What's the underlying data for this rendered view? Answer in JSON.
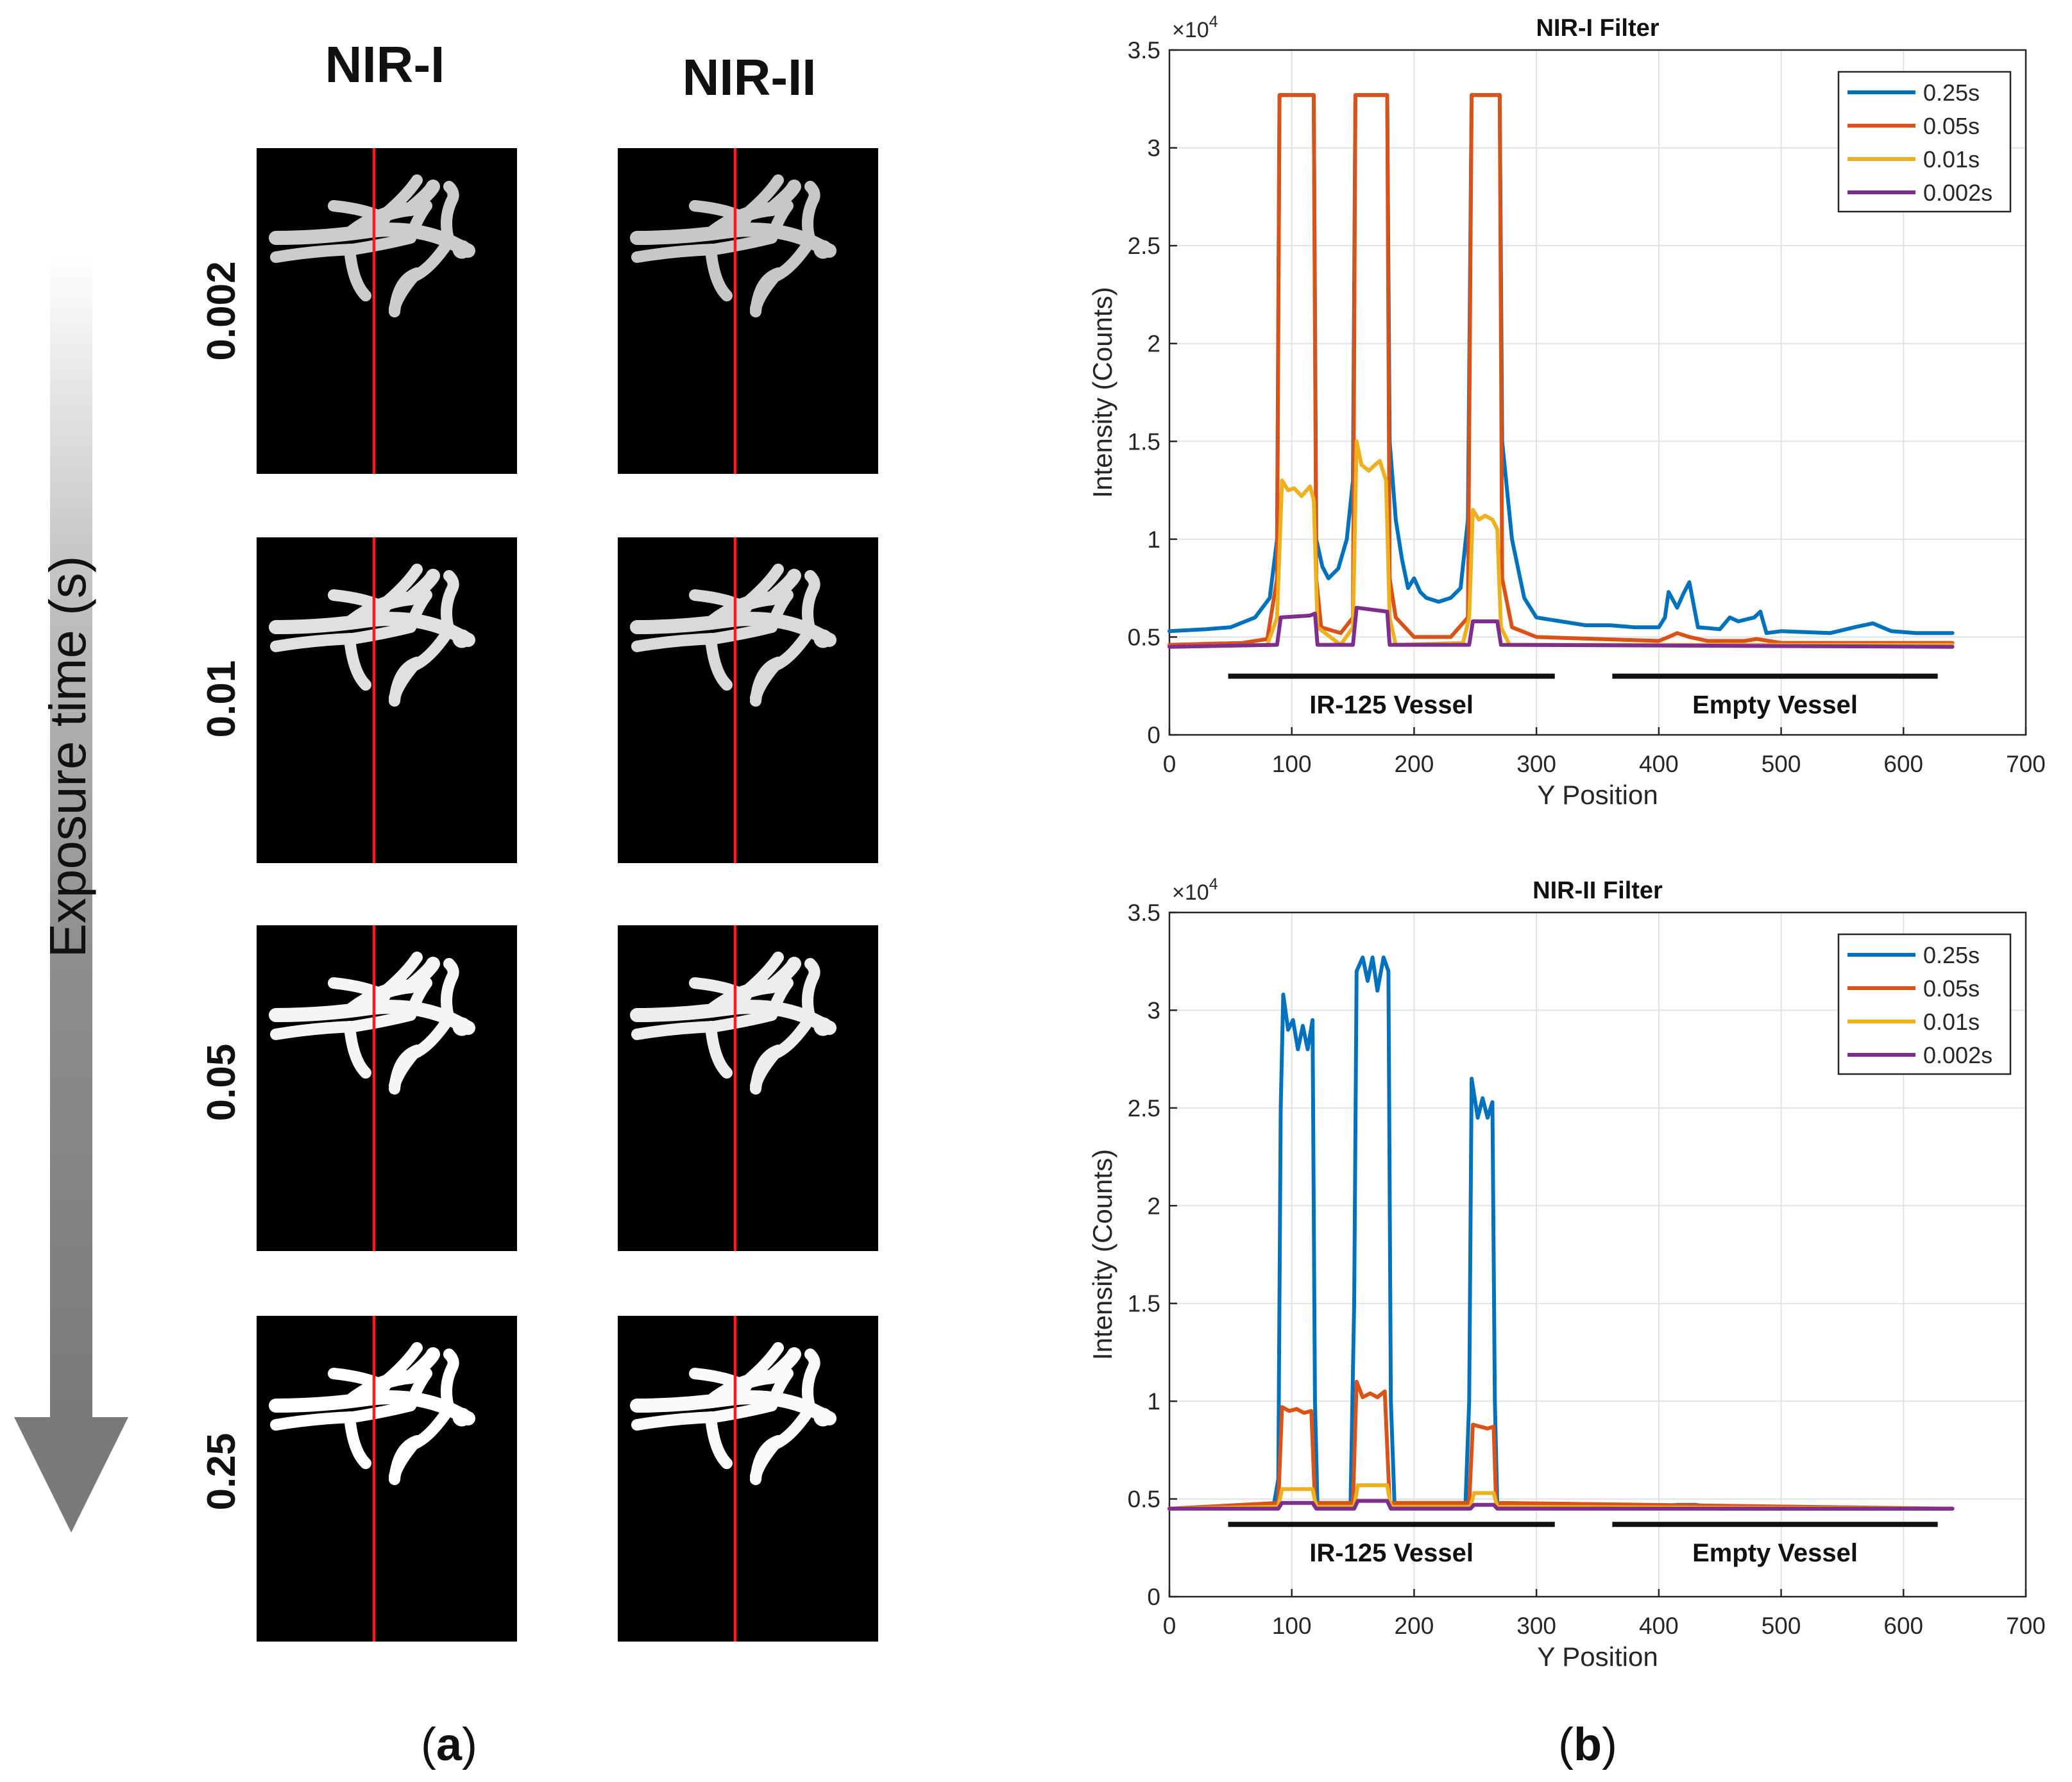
{
  "panel_a": {
    "col_headers": [
      "NIR-I",
      "NIR-II"
    ],
    "axis_label": "Exposure time (s)",
    "row_labels": [
      "0.002",
      "0.01",
      "0.05",
      "0.25"
    ],
    "caption_open": "(",
    "caption_letter": "a",
    "caption_close": ")",
    "brightness": [
      [
        0.8,
        0.78
      ],
      [
        0.88,
        0.85
      ],
      [
        0.96,
        0.93
      ],
      [
        1.0,
        0.98
      ]
    ],
    "colors": {
      "line": "#ff1a1a",
      "panel": "#000000",
      "vessel": "#ffffff"
    }
  },
  "panel_b": {
    "caption_open": "(",
    "caption_letter": "b",
    "caption_close": ")"
  },
  "chart_data": [
    {
      "type": "line",
      "title": "NIR-I Filter",
      "xlabel": "Y Position",
      "ylabel": "Intensity (Counts)",
      "exponent_label": "×10",
      "exponent_power": "4",
      "xlim": [
        0,
        700
      ],
      "ylim": [
        0,
        3.5
      ],
      "xticks": [
        "0",
        "100",
        "200",
        "300",
        "400",
        "500",
        "600",
        "700"
      ],
      "yticks": [
        "0",
        "0.5",
        "1",
        "1.5",
        "2",
        "2.5",
        "3",
        "3.5"
      ],
      "grid": true,
      "legend_position": "top-right",
      "annotations": [
        {
          "text": "IR-125 Vessel",
          "x_start": 48,
          "x_end": 315,
          "y": 0.3
        },
        {
          "text": "Empty Vessel",
          "x_start": 362,
          "x_end": 628,
          "y": 0.3
        }
      ],
      "series": [
        {
          "name": "0.25s",
          "color": "#0072BD",
          "points": [
            [
              0,
              0.53
            ],
            [
              30,
              0.54
            ],
            [
              50,
              0.55
            ],
            [
              70,
              0.6
            ],
            [
              82,
              0.7
            ],
            [
              88,
              1.0
            ],
            [
              90,
              3.27
            ],
            [
              118,
              3.27
            ],
            [
              120,
              1.0
            ],
            [
              125,
              0.86
            ],
            [
              130,
              0.8
            ],
            [
              138,
              0.85
            ],
            [
              145,
              1.0
            ],
            [
              150,
              1.3
            ],
            [
              152,
              3.27
            ],
            [
              178,
              3.27
            ],
            [
              180,
              1.5
            ],
            [
              185,
              1.1
            ],
            [
              190,
              0.9
            ],
            [
              195,
              0.75
            ],
            [
              200,
              0.8
            ],
            [
              205,
              0.73
            ],
            [
              210,
              0.7
            ],
            [
              220,
              0.68
            ],
            [
              230,
              0.7
            ],
            [
              238,
              0.75
            ],
            [
              244,
              1.1
            ],
            [
              247,
              3.27
            ],
            [
              270,
              3.27
            ],
            [
              272,
              1.5
            ],
            [
              280,
              1.0
            ],
            [
              290,
              0.7
            ],
            [
              300,
              0.6
            ],
            [
              320,
              0.58
            ],
            [
              340,
              0.56
            ],
            [
              360,
              0.56
            ],
            [
              380,
              0.55
            ],
            [
              400,
              0.55
            ],
            [
              405,
              0.6
            ],
            [
              408,
              0.73
            ],
            [
              415,
              0.65
            ],
            [
              420,
              0.72
            ],
            [
              425,
              0.78
            ],
            [
              432,
              0.55
            ],
            [
              450,
              0.54
            ],
            [
              458,
              0.6
            ],
            [
              465,
              0.58
            ],
            [
              478,
              0.6
            ],
            [
              483,
              0.63
            ],
            [
              488,
              0.52
            ],
            [
              500,
              0.53
            ],
            [
              540,
              0.52
            ],
            [
              560,
              0.55
            ],
            [
              575,
              0.57
            ],
            [
              590,
              0.53
            ],
            [
              610,
              0.52
            ],
            [
              640,
              0.52
            ]
          ]
        },
        {
          "name": "0.05s",
          "color": "#D95319",
          "points": [
            [
              0,
              0.46
            ],
            [
              60,
              0.47
            ],
            [
              80,
              0.49
            ],
            [
              88,
              0.8
            ],
            [
              90,
              3.27
            ],
            [
              118,
              3.27
            ],
            [
              120,
              0.8
            ],
            [
              124,
              0.55
            ],
            [
              140,
              0.52
            ],
            [
              150,
              0.6
            ],
            [
              152,
              3.27
            ],
            [
              178,
              3.27
            ],
            [
              180,
              0.8
            ],
            [
              185,
              0.6
            ],
            [
              200,
              0.5
            ],
            [
              230,
              0.5
            ],
            [
              244,
              0.6
            ],
            [
              247,
              3.27
            ],
            [
              270,
              3.27
            ],
            [
              272,
              0.8
            ],
            [
              280,
              0.55
            ],
            [
              300,
              0.5
            ],
            [
              400,
              0.48
            ],
            [
              408,
              0.5
            ],
            [
              415,
              0.52
            ],
            [
              425,
              0.5
            ],
            [
              440,
              0.48
            ],
            [
              470,
              0.48
            ],
            [
              480,
              0.49
            ],
            [
              500,
              0.47
            ],
            [
              640,
              0.47
            ]
          ]
        },
        {
          "name": "0.01s",
          "color": "#EDB120",
          "points": [
            [
              0,
              0.45
            ],
            [
              80,
              0.46
            ],
            [
              88,
              0.6
            ],
            [
              92,
              1.3
            ],
            [
              97,
              1.25
            ],
            [
              102,
              1.26
            ],
            [
              108,
              1.22
            ],
            [
              115,
              1.27
            ],
            [
              118,
              1.2
            ],
            [
              121,
              0.55
            ],
            [
              140,
              0.46
            ],
            [
              150,
              0.55
            ],
            [
              153,
              1.5
            ],
            [
              157,
              1.38
            ],
            [
              163,
              1.35
            ],
            [
              168,
              1.38
            ],
            [
              172,
              1.4
            ],
            [
              177,
              1.3
            ],
            [
              180,
              0.6
            ],
            [
              185,
              0.46
            ],
            [
              240,
              0.47
            ],
            [
              245,
              0.6
            ],
            [
              248,
              1.15
            ],
            [
              253,
              1.1
            ],
            [
              258,
              1.12
            ],
            [
              264,
              1.1
            ],
            [
              268,
              1.05
            ],
            [
              271,
              0.55
            ],
            [
              278,
              0.46
            ],
            [
              640,
              0.46
            ]
          ]
        },
        {
          "name": "0.002s",
          "color": "#7E2F8E",
          "points": [
            [
              0,
              0.45
            ],
            [
              88,
              0.46
            ],
            [
              91,
              0.6
            ],
            [
              115,
              0.61
            ],
            [
              119,
              0.62
            ],
            [
              121,
              0.46
            ],
            [
              150,
              0.46
            ],
            [
              153,
              0.65
            ],
            [
              178,
              0.63
            ],
            [
              180,
              0.46
            ],
            [
              245,
              0.46
            ],
            [
              248,
              0.58
            ],
            [
              268,
              0.58
            ],
            [
              271,
              0.46
            ],
            [
              640,
              0.45
            ]
          ]
        }
      ]
    },
    {
      "type": "line",
      "title": "NIR-II Filter",
      "xlabel": "Y Position",
      "ylabel": "Intensity (Counts)",
      "exponent_label": "×10",
      "exponent_power": "4",
      "xlim": [
        0,
        700
      ],
      "ylim": [
        0,
        3.5
      ],
      "xticks": [
        "0",
        "100",
        "200",
        "300",
        "400",
        "500",
        "600",
        "700"
      ],
      "yticks": [
        "0",
        "0.5",
        "1",
        "1.5",
        "2",
        "2.5",
        "3",
        "3.5"
      ],
      "grid": true,
      "legend_position": "top-right",
      "annotations": [
        {
          "text": "IR-125 Vessel",
          "x_start": 48,
          "x_end": 315,
          "y": 0.37
        },
        {
          "text": "Empty Vessel",
          "x_start": 362,
          "x_end": 628,
          "y": 0.37
        }
      ],
      "series": [
        {
          "name": "0.25s",
          "color": "#0072BD",
          "points": [
            [
              0,
              0.45
            ],
            [
              85,
              0.46
            ],
            [
              89,
              0.6
            ],
            [
              91,
              2.5
            ],
            [
              93,
              3.08
            ],
            [
              97,
              2.9
            ],
            [
              101,
              2.95
            ],
            [
              105,
              2.8
            ],
            [
              109,
              2.92
            ],
            [
              113,
              2.8
            ],
            [
              117,
              2.95
            ],
            [
              119,
              1.0
            ],
            [
              121,
              0.47
            ],
            [
              148,
              0.47
            ],
            [
              151,
              1.5
            ],
            [
              153,
              3.2
            ],
            [
              158,
              3.27
            ],
            [
              162,
              3.15
            ],
            [
              166,
              3.27
            ],
            [
              170,
              3.1
            ],
            [
              175,
              3.27
            ],
            [
              179,
              3.2
            ],
            [
              181,
              1.0
            ],
            [
              184,
              0.47
            ],
            [
              242,
              0.47
            ],
            [
              245,
              1.0
            ],
            [
              247,
              2.65
            ],
            [
              252,
              2.45
            ],
            [
              256,
              2.55
            ],
            [
              260,
              2.45
            ],
            [
              264,
              2.53
            ],
            [
              266,
              1.0
            ],
            [
              268,
              0.47
            ],
            [
              400,
              0.46
            ],
            [
              415,
              0.47
            ],
            [
              430,
              0.47
            ],
            [
              450,
              0.45
            ],
            [
              640,
              0.45
            ]
          ]
        },
        {
          "name": "0.05s",
          "color": "#D95319",
          "points": [
            [
              0,
              0.45
            ],
            [
              89,
              0.48
            ],
            [
              92,
              0.97
            ],
            [
              98,
              0.95
            ],
            [
              104,
              0.96
            ],
            [
              110,
              0.94
            ],
            [
              116,
              0.95
            ],
            [
              119,
              0.48
            ],
            [
              150,
              0.48
            ],
            [
              153,
              1.1
            ],
            [
              158,
              1.02
            ],
            [
              164,
              1.04
            ],
            [
              170,
              1.02
            ],
            [
              176,
              1.05
            ],
            [
              180,
              0.48
            ],
            [
              245,
              0.48
            ],
            [
              248,
              0.88
            ],
            [
              254,
              0.87
            ],
            [
              260,
              0.86
            ],
            [
              265,
              0.87
            ],
            [
              267,
              0.48
            ],
            [
              640,
              0.45
            ]
          ]
        },
        {
          "name": "0.01s",
          "color": "#EDB120",
          "points": [
            [
              0,
              0.45
            ],
            [
              89,
              0.46
            ],
            [
              92,
              0.55
            ],
            [
              117,
              0.55
            ],
            [
              120,
              0.46
            ],
            [
              151,
              0.46
            ],
            [
              154,
              0.57
            ],
            [
              178,
              0.57
            ],
            [
              181,
              0.46
            ],
            [
              246,
              0.46
            ],
            [
              249,
              0.53
            ],
            [
              265,
              0.53
            ],
            [
              268,
              0.46
            ],
            [
              640,
              0.45
            ]
          ]
        },
        {
          "name": "0.002s",
          "color": "#7E2F8E",
          "points": [
            [
              0,
              0.45
            ],
            [
              89,
              0.45
            ],
            [
              92,
              0.48
            ],
            [
              117,
              0.48
            ],
            [
              120,
              0.45
            ],
            [
              151,
              0.45
            ],
            [
              154,
              0.49
            ],
            [
              178,
              0.49
            ],
            [
              181,
              0.45
            ],
            [
              246,
              0.45
            ],
            [
              249,
              0.47
            ],
            [
              265,
              0.47
            ],
            [
              268,
              0.45
            ],
            [
              640,
              0.45
            ]
          ]
        }
      ]
    }
  ]
}
